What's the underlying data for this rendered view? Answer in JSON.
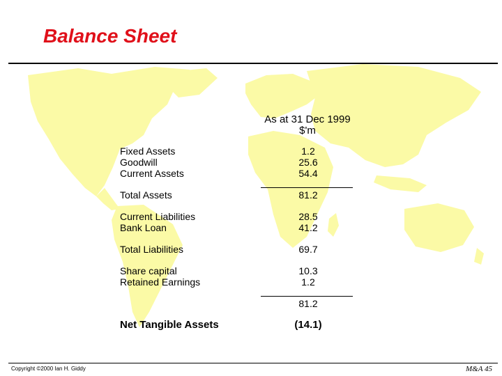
{
  "title": "Balance Sheet",
  "header": {
    "date": "As at 31 Dec 1999",
    "unit": "$'m"
  },
  "rows": [
    {
      "label": "Fixed Assets",
      "value": "1.2"
    },
    {
      "label": "Goodwill",
      "value": "25.6"
    },
    {
      "label": "Current Assets",
      "value": "54.4"
    },
    {
      "label": "Total Assets",
      "value": "81.2"
    },
    {
      "label": "Current Liabilities",
      "value": "28.5"
    },
    {
      "label": "Bank Loan",
      "value": "41.2"
    },
    {
      "label": "Total Liabilities",
      "value": "69.7"
    },
    {
      "label": "Share capital",
      "value": "10.3"
    },
    {
      "label": "Retained Earnings",
      "value": "1.2"
    },
    {
      "label": "",
      "value": "81.2"
    },
    {
      "label": "Net Tangible Assets",
      "value": "(14.1)"
    }
  ],
  "footer": {
    "copyright": "Copyright ©2000 Ian H. Giddy",
    "page": "M&A 45"
  },
  "colors": {
    "map": "#fbfaa6",
    "title": "#e0101a"
  }
}
